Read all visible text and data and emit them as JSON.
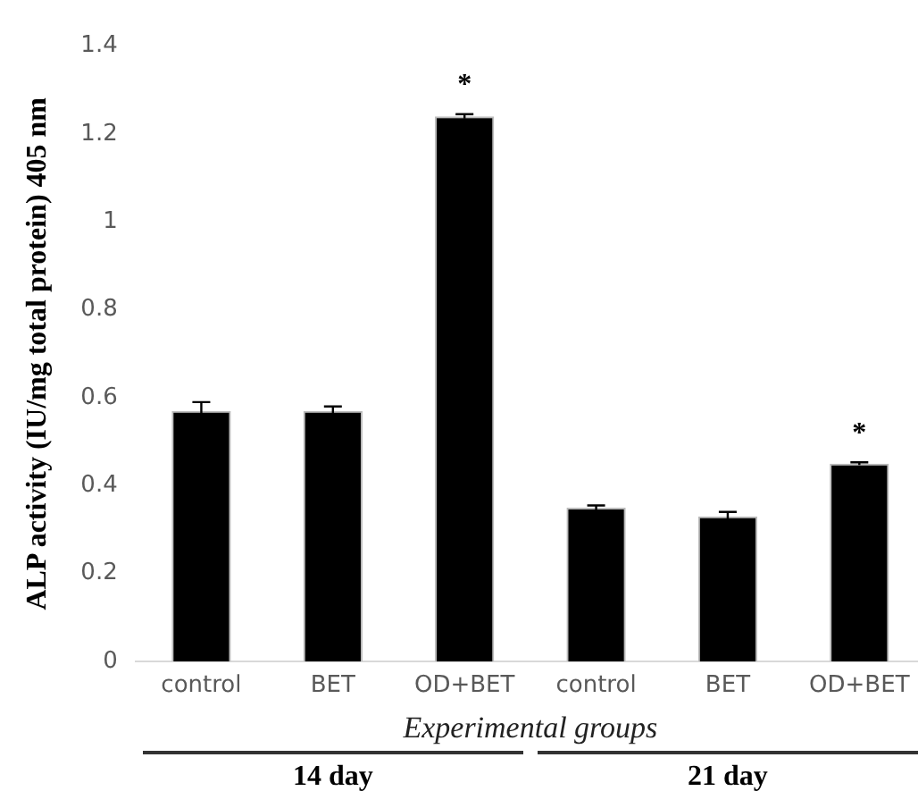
{
  "chart_data": {
    "type": "bar",
    "categories": [
      "control",
      "BET",
      "OD+BET",
      "control",
      "BET",
      "OD+BET"
    ],
    "values": [
      0.57,
      0.57,
      1.24,
      0.35,
      0.33,
      0.45
    ],
    "errors": [
      0.02,
      0.01,
      0.005,
      0.005,
      0.01,
      0.003
    ],
    "value_labels": [
      null,
      null,
      "*",
      null,
      null,
      "*"
    ],
    "color": "#000000",
    "xlabel": "Experimental groups",
    "ylabel": "ALP activity (IU/mg total protein) 405 nm",
    "annotations": [
      "14 day",
      "21 day"
    ],
    "ylim": [
      0,
      1.4
    ],
    "yticks": [
      0,
      {
        "value": 0.2,
        "label": "0.2"
      },
      {
        "value": 0.4,
        "label": "0.4"
      },
      {
        "value": 0.6,
        "label": "0.6"
      },
      {
        "value": 0.8,
        "label": "0.8"
      },
      1,
      {
        "value": 1.2,
        "label": "1.2"
      },
      {
        "value": 1.4,
        "label": "1.4"
      }
    ],
    "grid": false,
    "legend": false
  }
}
